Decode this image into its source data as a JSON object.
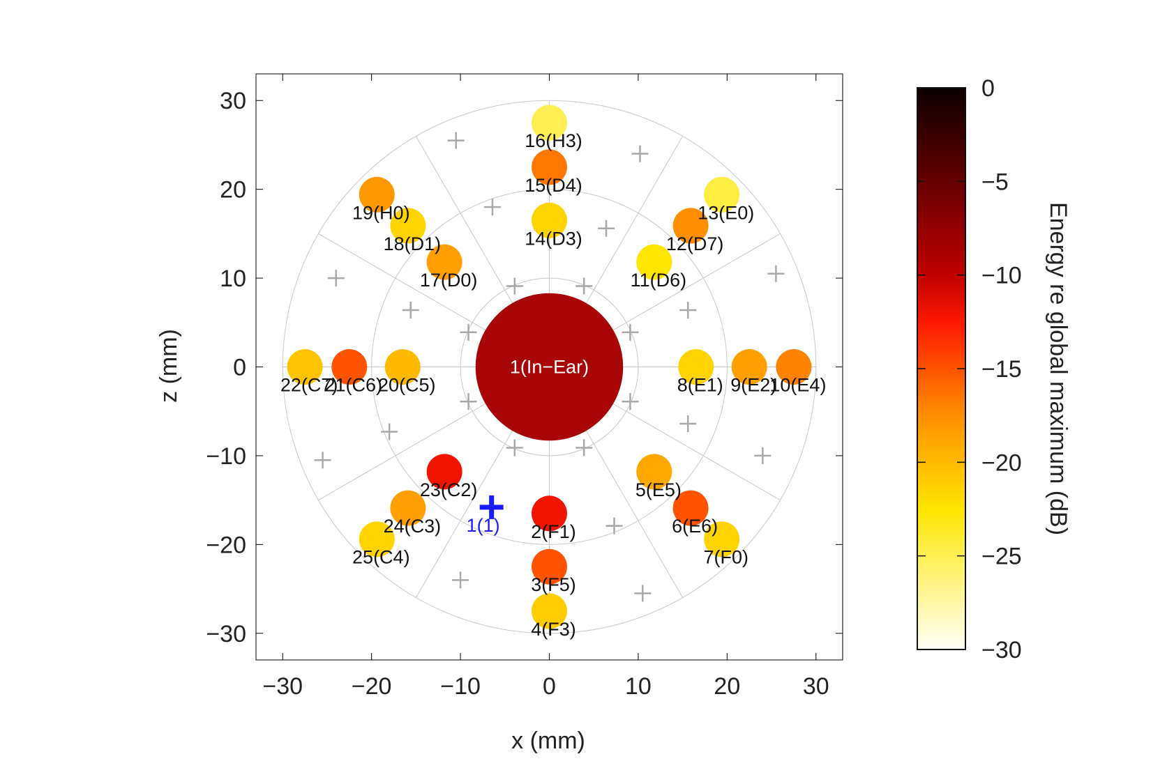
{
  "chart_data": {
    "type": "scatter",
    "xlabel": "x (mm)",
    "ylabel": "z (mm)",
    "xlim": [
      -33,
      33
    ],
    "ylim": [
      -33,
      33
    ],
    "xticks": [
      -30,
      -20,
      -10,
      0,
      10,
      20,
      30
    ],
    "yticks": [
      -30,
      -20,
      -10,
      0,
      10,
      20,
      30
    ],
    "xtick_labels": [
      "−30",
      "−20",
      "−10",
      "0",
      "10",
      "20",
      "30"
    ],
    "ytick_labels": [
      "−30",
      "−20",
      "−10",
      "0",
      "10",
      "20",
      "30"
    ],
    "grid": "polar",
    "polar_grid": {
      "circle_radii": [
        10,
        20,
        30
      ],
      "spoke_angles_deg": [
        0,
        30,
        60,
        90,
        120,
        150,
        180,
        210,
        240,
        270,
        300,
        330
      ]
    },
    "colorbar": {
      "label": "Energy re global maximum (dB)",
      "range": [
        -30,
        0
      ],
      "ticks": [
        0,
        -5,
        -10,
        -15,
        -20,
        -25,
        -30
      ],
      "tick_labels": [
        "0",
        "−5",
        "−10",
        "−15",
        "−20",
        "−25",
        "−30"
      ],
      "colormap": "hot"
    },
    "center": {
      "label": "1(In−Ear)",
      "x": 0,
      "z": 0,
      "radius_mm": 8.3,
      "value_db": -6
    },
    "points": [
      {
        "label": "2(F1)",
        "x": 0,
        "z": -16.5,
        "value_db": -12
      },
      {
        "label": "3(F5)",
        "x": 0,
        "z": -22.5,
        "value_db": -15
      },
      {
        "label": "4(F3)",
        "x": 0,
        "z": -27.5,
        "value_db": -21
      },
      {
        "label": "5(E5)",
        "x": 11.8,
        "z": -11.8,
        "value_db": -19
      },
      {
        "label": "6(E6)",
        "x": 15.9,
        "z": -15.9,
        "value_db": -15
      },
      {
        "label": "7(F0)",
        "x": 19.4,
        "z": -19.4,
        "value_db": -21.5
      },
      {
        "label": "8(E1)",
        "x": 16.5,
        "z": 0,
        "value_db": -21.5
      },
      {
        "label": "9(E2)",
        "x": 22.5,
        "z": 0,
        "value_db": -18.5
      },
      {
        "label": "10(E4)",
        "x": 27.5,
        "z": 0,
        "value_db": -17
      },
      {
        "label": "11(D6)",
        "x": 11.8,
        "z": 11.8,
        "value_db": -22.5
      },
      {
        "label": "12(D7)",
        "x": 15.9,
        "z": 15.9,
        "value_db": -17.5
      },
      {
        "label": "13(E0)",
        "x": 19.4,
        "z": 19.4,
        "value_db": -24.5
      },
      {
        "label": "14(D3)",
        "x": 0,
        "z": 16.5,
        "value_db": -21.5
      },
      {
        "label": "15(D4)",
        "x": 0,
        "z": 22.5,
        "value_db": -16.5
      },
      {
        "label": "16(H3)",
        "x": 0,
        "z": 27.5,
        "value_db": -25
      },
      {
        "label": "17(D0)",
        "x": -11.8,
        "z": 11.8,
        "value_db": -18.5
      },
      {
        "label": "18(D1)",
        "x": -15.9,
        "z": 15.9,
        "value_db": -21.5
      },
      {
        "label": "19(H0)",
        "x": -19.4,
        "z": 19.4,
        "value_db": -18
      },
      {
        "label": "20(C5)",
        "x": -16.5,
        "z": 0,
        "value_db": -20
      },
      {
        "label": "21(C6)",
        "x": -22.5,
        "z": 0,
        "value_db": -15
      },
      {
        "label": "22(C7)",
        "x": -27.5,
        "z": 0,
        "value_db": -20.5
      },
      {
        "label": "23(C2)",
        "x": -11.8,
        "z": -11.8,
        "value_db": -12
      },
      {
        "label": "24(C3)",
        "x": -15.9,
        "z": -15.9,
        "value_db": -18.5
      },
      {
        "label": "25(C4)",
        "x": -19.4,
        "z": -19.4,
        "value_db": -21.5
      }
    ],
    "reference_markers": [
      {
        "x": 3.9,
        "z": 9.1
      },
      {
        "x": 9.1,
        "z": 3.9
      },
      {
        "x": 9.1,
        "z": -3.9
      },
      {
        "x": 3.9,
        "z": -9.1
      },
      {
        "x": -3.9,
        "z": -9.1
      },
      {
        "x": -9.1,
        "z": -3.9
      },
      {
        "x": -9.1,
        "z": 3.9
      },
      {
        "x": -3.9,
        "z": 9.1
      },
      {
        "x": 6.4,
        "z": 15.6
      },
      {
        "x": 15.6,
        "z": 6.4
      },
      {
        "x": 15.6,
        "z": -6.4
      },
      {
        "x": 7.3,
        "z": -17.9
      },
      {
        "x": -6.4,
        "z": 18
      },
      {
        "x": -15.6,
        "z": 6.4
      },
      {
        "x": -18,
        "z": -7.3
      },
      {
        "x": 10.2,
        "z": 24
      },
      {
        "x": 25.5,
        "z": 10.5
      },
      {
        "x": 24,
        "z": -10
      },
      {
        "x": 10.5,
        "z": -25.5
      },
      {
        "x": -10,
        "z": -24
      },
      {
        "x": -25.5,
        "z": -10.5
      },
      {
        "x": -24,
        "z": 10
      },
      {
        "x": -10.5,
        "z": 25.5
      }
    ],
    "highlight_marker": {
      "label": "1(1)",
      "x": -6.5,
      "z": -15.8,
      "color": "#1a1aff"
    }
  }
}
